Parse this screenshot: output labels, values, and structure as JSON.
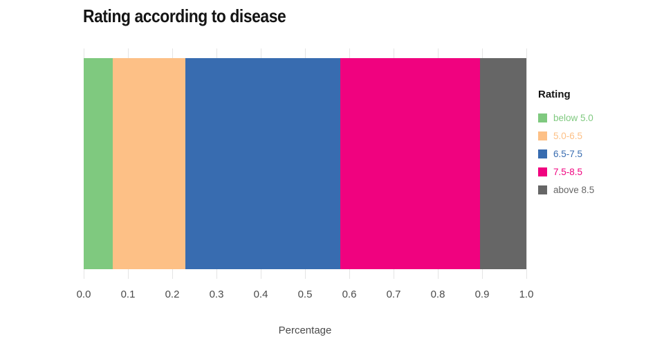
{
  "chart_data": {
    "type": "bar",
    "orientation": "horizontal-stacked",
    "title": "Rating according to disease",
    "xlabel": "Percentage",
    "ylabel": "",
    "xlim": [
      0,
      1
    ],
    "grid": true,
    "xticks": [
      "0.0",
      "0.1",
      "0.2",
      "0.3",
      "0.4",
      "0.5",
      "0.6",
      "0.7",
      "0.8",
      "0.9",
      "1.0"
    ],
    "legend_title": "Rating",
    "legend_position": "right",
    "series": [
      {
        "name": "below 5.0",
        "value": 0.065,
        "color": "#7FC97F"
      },
      {
        "name": "5.0-6.5",
        "value": 0.165,
        "color": "#FDC086"
      },
      {
        "name": "6.5-7.5",
        "value": 0.35,
        "color": "#386CB0"
      },
      {
        "name": "7.5-8.5",
        "value": 0.315,
        "color": "#F0027F"
      },
      {
        "name": "above 8.5",
        "value": 0.105,
        "color": "#666666"
      }
    ]
  }
}
